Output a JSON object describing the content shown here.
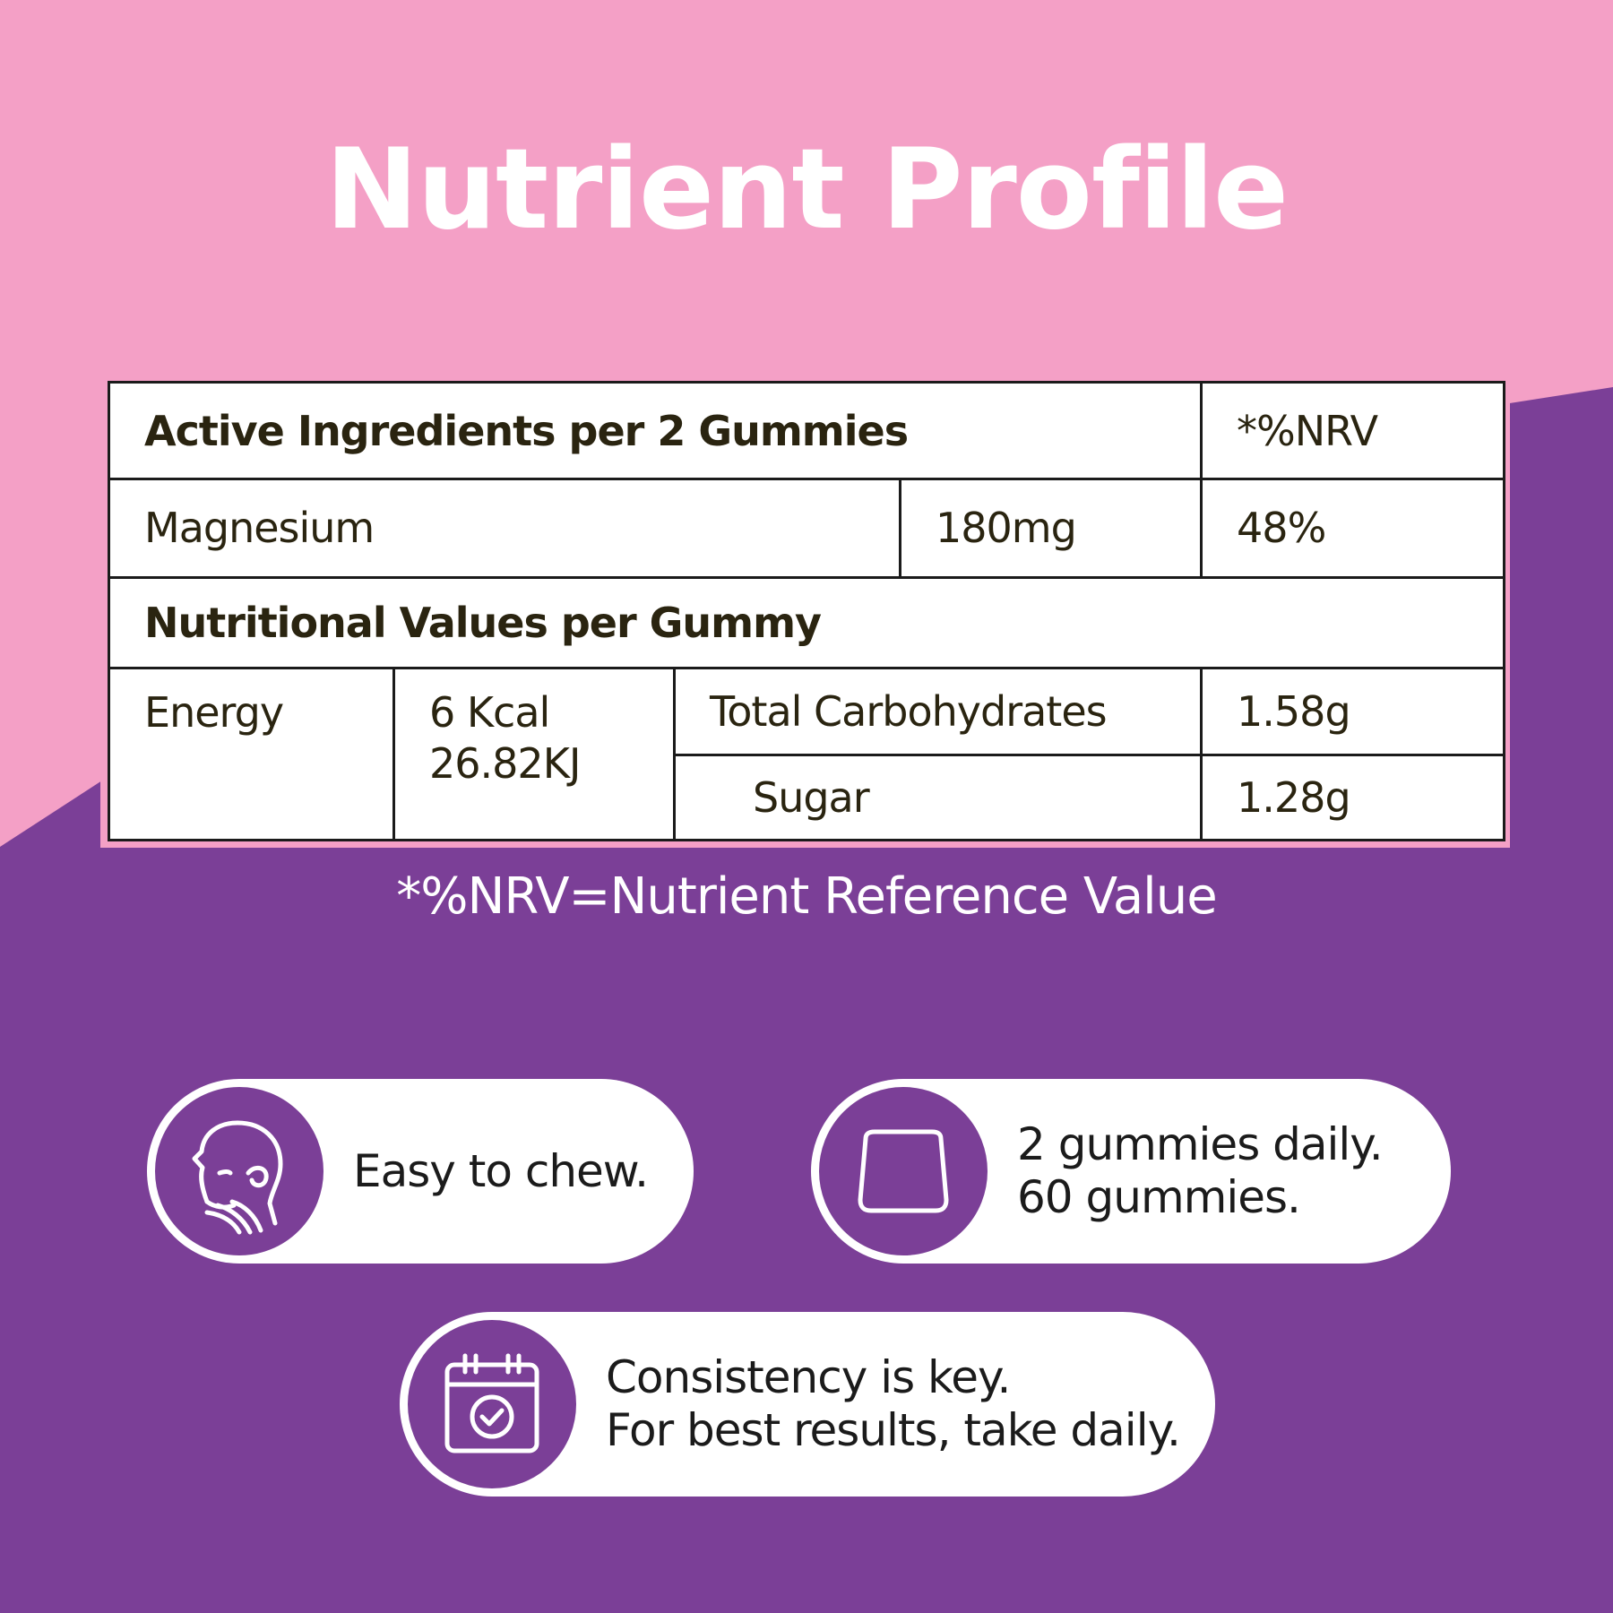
{
  "title": "Nutrient Profile",
  "colors": {
    "pink": "#f4a0c6",
    "purple": "#7b3f97",
    "white": "#ffffff",
    "text_dark": "#2a2410"
  },
  "table": {
    "active_header": "Active Ingredients per 2 Gummies",
    "nrv_header": "*%NRV",
    "magnesium": {
      "name": "Magnesium",
      "amount": "180mg",
      "nrv": "48%"
    },
    "nutritional_header": "Nutritional Values per Gummy",
    "energy": {
      "label": "Energy",
      "kcal": "6 Kcal",
      "kj": "26.82KJ"
    },
    "carbs": {
      "label": "Total Carbohydrates",
      "value": "1.58g"
    },
    "sugar": {
      "label": "Sugar",
      "value": "1.28g"
    }
  },
  "footnote": "*%NRV=Nutrient Reference Value",
  "features": {
    "chew": {
      "icon": "face-chew-icon",
      "line1": "Easy to chew."
    },
    "dosage": {
      "icon": "gummy-icon",
      "line1": "2 gummies daily.",
      "line2": "60 gummies."
    },
    "consistency": {
      "icon": "calendar-check-icon",
      "line1": "Consistency is key.",
      "line2": "For best results, take daily."
    }
  }
}
